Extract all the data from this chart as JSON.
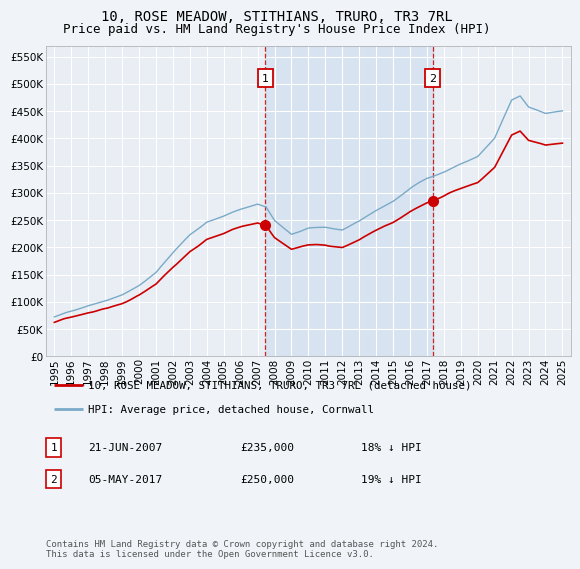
{
  "title": "10, ROSE MEADOW, STITHIANS, TRURO, TR3 7RL",
  "subtitle": "Price paid vs. HM Land Registry's House Price Index (HPI)",
  "ylabel_ticks": [
    "£0",
    "£50K",
    "£100K",
    "£150K",
    "£200K",
    "£250K",
    "£300K",
    "£350K",
    "£400K",
    "£450K",
    "£500K",
    "£550K"
  ],
  "ytick_values": [
    0,
    50000,
    100000,
    150000,
    200000,
    250000,
    300000,
    350000,
    400000,
    450000,
    500000,
    550000
  ],
  "ylim": [
    0,
    570000
  ],
  "x_start_year": 1995,
  "x_end_year": 2025,
  "background_color": "#f0f4f8",
  "plot_bg_color": "#e8eef4",
  "fill_color": "#ccdcee",
  "grid_color": "#ffffff",
  "red_color": "#cc0000",
  "blue_color": "#7aaac8",
  "sale1_year": 2007.46,
  "sale1_value": 235000,
  "sale2_year": 2017.34,
  "sale2_value": 250000,
  "legend_line1": "10, ROSE MEADOW, STITHIANS, TRURO, TR3 7RL (detached house)",
  "legend_line2": "HPI: Average price, detached house, Cornwall",
  "table_row1": [
    "1",
    "21-JUN-2007",
    "£235,000",
    "18% ↓ HPI"
  ],
  "table_row2": [
    "2",
    "05-MAY-2017",
    "£250,000",
    "19% ↓ HPI"
  ],
  "footer": "Contains HM Land Registry data © Crown copyright and database right 2024.\nThis data is licensed under the Open Government Licence v3.0.",
  "title_fontsize": 10,
  "subtitle_fontsize": 9,
  "tick_fontsize": 7.5
}
